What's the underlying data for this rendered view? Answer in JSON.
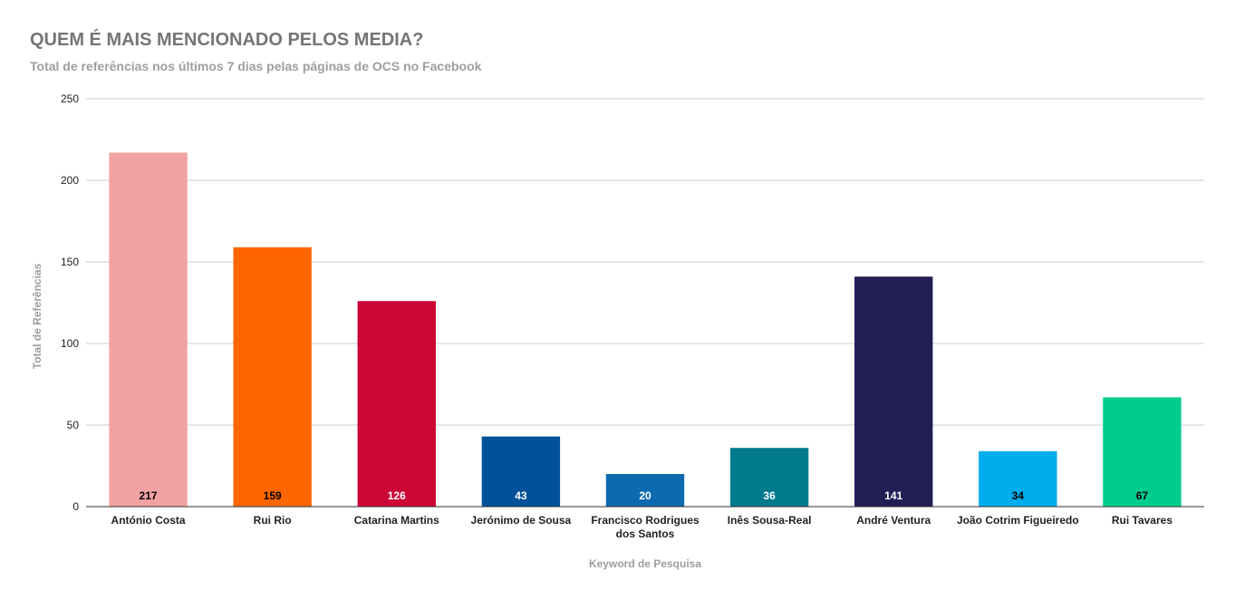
{
  "chart_data": {
    "type": "bar",
    "title": "QUEM É MAIS MENCIONADO PELOS MEDIA?",
    "subtitle": "Total de referências nos últimos 7 dias pelas páginas de OCS no Facebook",
    "xlabel": "Keyword de Pesquisa",
    "ylabel": "Total de Referências",
    "ylim": [
      0,
      250
    ],
    "yticks": [
      0,
      50,
      100,
      150,
      200,
      250
    ],
    "grid": true,
    "categories": [
      [
        "António Costa"
      ],
      [
        "Rui Rio"
      ],
      [
        "Catarina Martins"
      ],
      [
        "Jerónimo de Sousa"
      ],
      [
        "Francisco Rodrigues",
        "dos Santos"
      ],
      [
        "Inês Sousa-Real"
      ],
      [
        "André Ventura"
      ],
      [
        "João Cotrim Figueiredo"
      ],
      [
        "Rui Tavares"
      ]
    ],
    "values": [
      217,
      159,
      126,
      43,
      20,
      36,
      141,
      34,
      67
    ],
    "colors": [
      "#f2a2a2",
      "#ff6600",
      "#cc0635",
      "#005199",
      "#0d6ab0",
      "#017a8d",
      "#211e55",
      "#01aded",
      "#00cc8c"
    ],
    "label_colors": [
      "#000000",
      "#000000",
      "#ffffff",
      "#ffffff",
      "#ffffff",
      "#ffffff",
      "#ffffff",
      "#000000",
      "#000000"
    ]
  }
}
